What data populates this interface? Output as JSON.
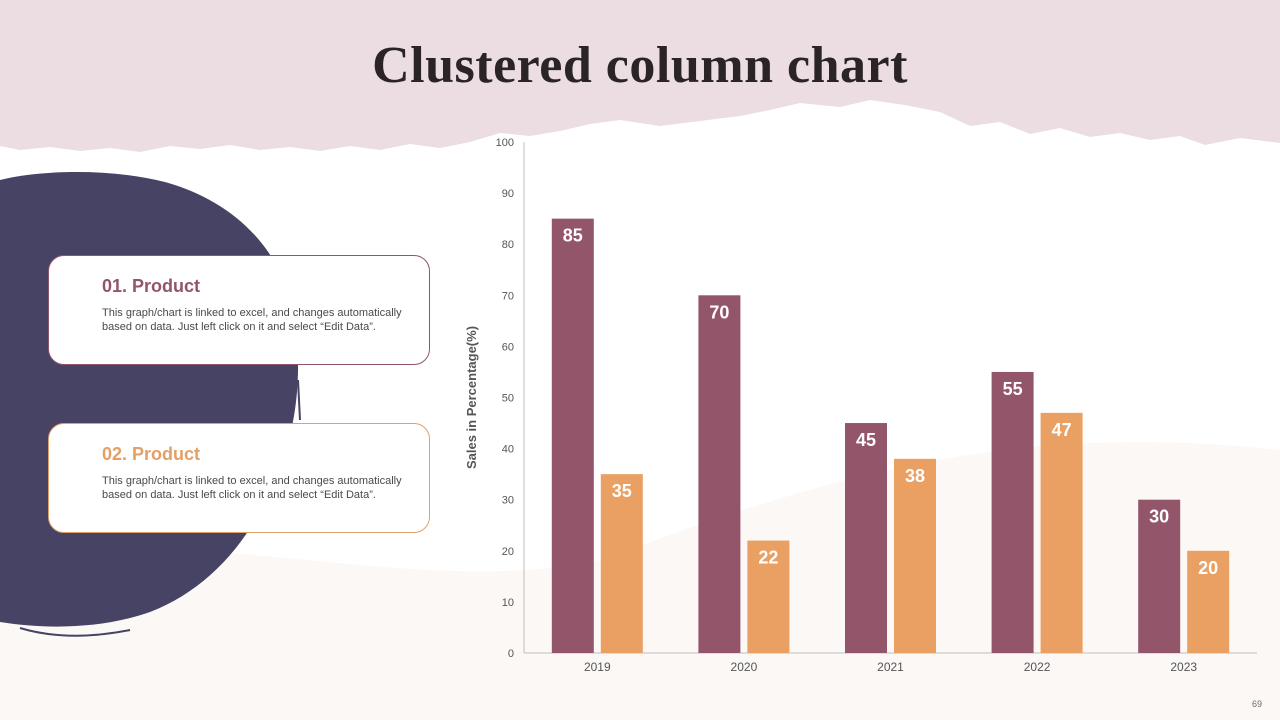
{
  "title": "Clustered column chart",
  "cards": [
    {
      "title": "01. Product",
      "text": "This graph/chart is linked to excel, and changes automatically based on data. Just left click on it and select “Edit Data”."
    },
    {
      "title": "02. Product",
      "text": "This graph/chart is linked to excel, and changes automatically based on data. Just left click on it and select “Edit Data”."
    }
  ],
  "page_number": "69",
  "colors": {
    "header_band": "#ebdde2",
    "brush_circle": "#474364",
    "product1": "#93556a",
    "product2": "#e9a062",
    "axis_text": "#555555"
  },
  "chart_data": {
    "type": "bar",
    "categories": [
      "2019",
      "2020",
      "2021",
      "2022",
      "2023"
    ],
    "series": [
      {
        "values": [
          85,
          70,
          45,
          55,
          30
        ]
      },
      {
        "values": [
          35,
          22,
          38,
          47,
          20
        ]
      }
    ],
    "title": "",
    "xlabel": "",
    "ylabel": "Sales in Percentage(%)",
    "ylim": [
      0,
      100
    ],
    "yticks": [
      0,
      10,
      20,
      30,
      40,
      50,
      60,
      70,
      80,
      90,
      100
    ],
    "data_labels": true,
    "grid": false,
    "legend": "none"
  }
}
